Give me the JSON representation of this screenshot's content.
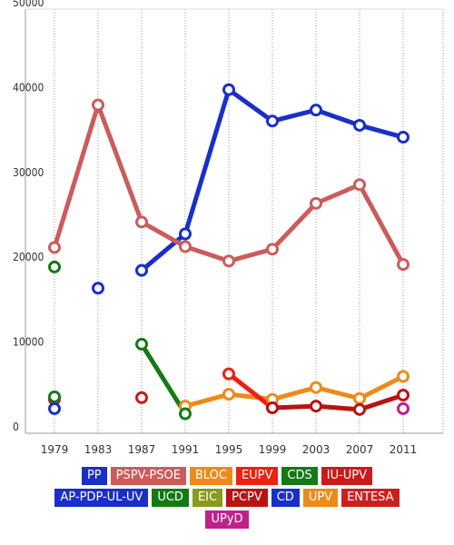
{
  "chart_data": {
    "type": "line",
    "title": "",
    "xlabel": "",
    "ylabel": "",
    "x": [
      "1979",
      "1983",
      "1987",
      "1991",
      "1995",
      "1999",
      "2003",
      "2007",
      "2011"
    ],
    "ylim": [
      0,
      50000
    ],
    "yticks": [
      "0",
      "10000",
      "20000",
      "30000",
      "40000",
      "50000"
    ],
    "grid": "vertical dotted",
    "legend_position": "bottom",
    "series": [
      {
        "name": "PP",
        "color": "#1a2fc8",
        "values": [
          null,
          null,
          19200,
          23500,
          40500,
          36800,
          38100,
          36300,
          34900
        ]
      },
      {
        "name": "PSPV-PSOE",
        "color": "#cc5c5c",
        "values": [
          21900,
          38700,
          24900,
          22000,
          20300,
          21700,
          27100,
          29300,
          19900
        ]
      },
      {
        "name": "BLOC",
        "color": "#ee8a1a",
        "values": [
          null,
          null,
          null,
          3200,
          4600,
          4000,
          5400,
          4100,
          6700
        ]
      },
      {
        "name": "EUPV",
        "color": "#ee2010",
        "values": [
          null,
          null,
          null,
          null,
          7000,
          3000,
          null,
          null,
          null
        ]
      },
      {
        "name": "CDS",
        "color": "#157a15",
        "values": [
          19600,
          null,
          10500,
          2300,
          null,
          null,
          null,
          null,
          null
        ]
      },
      {
        "name": "IU-UPV",
        "color": "#cc1a1a",
        "values": [
          4000,
          null,
          4200,
          null,
          null,
          null,
          null,
          null,
          null
        ]
      },
      {
        "name": "AP-PDP-UL-UV",
        "color": "#1a2fc8",
        "values": [
          null,
          17100,
          null,
          null,
          null,
          null,
          null,
          null,
          null
        ]
      },
      {
        "name": "UCD",
        "color": "#157a15",
        "values": [
          4300,
          null,
          null,
          null,
          null,
          null,
          null,
          null,
          null
        ]
      },
      {
        "name": "EIC",
        "color": "#8a9a1a",
        "values": [
          null,
          null,
          null,
          null,
          null,
          null,
          null,
          null,
          null
        ]
      },
      {
        "name": "PCPV",
        "color": "#b81414",
        "values": [
          null,
          null,
          null,
          null,
          null,
          3000,
          3200,
          2800,
          4500
        ]
      },
      {
        "name": "CD",
        "color": "#1a2fc8",
        "values": [
          2900,
          null,
          null,
          null,
          null,
          null,
          null,
          null,
          null
        ]
      },
      {
        "name": "UPV",
        "color": "#ee8a1a",
        "values": [
          null,
          null,
          null,
          null,
          null,
          null,
          null,
          null,
          null
        ]
      },
      {
        "name": "ENTESA",
        "color": "#cc2020",
        "values": [
          null,
          null,
          null,
          null,
          null,
          null,
          null,
          null,
          null
        ]
      },
      {
        "name": "UPyD",
        "color": "#c0208a",
        "values": [
          null,
          null,
          null,
          null,
          null,
          null,
          null,
          null,
          2900
        ]
      }
    ],
    "legend_rows": [
      [
        "PP",
        "PSPV-PSOE",
        "BLOC",
        "EUPV",
        "CDS",
        "IU-UPV"
      ],
      [
        "AP-PDP-UL-UV",
        "UCD",
        "EIC",
        "PCPV",
        "CD",
        "UPV",
        "ENTESA"
      ],
      [
        "UPyD"
      ]
    ]
  }
}
